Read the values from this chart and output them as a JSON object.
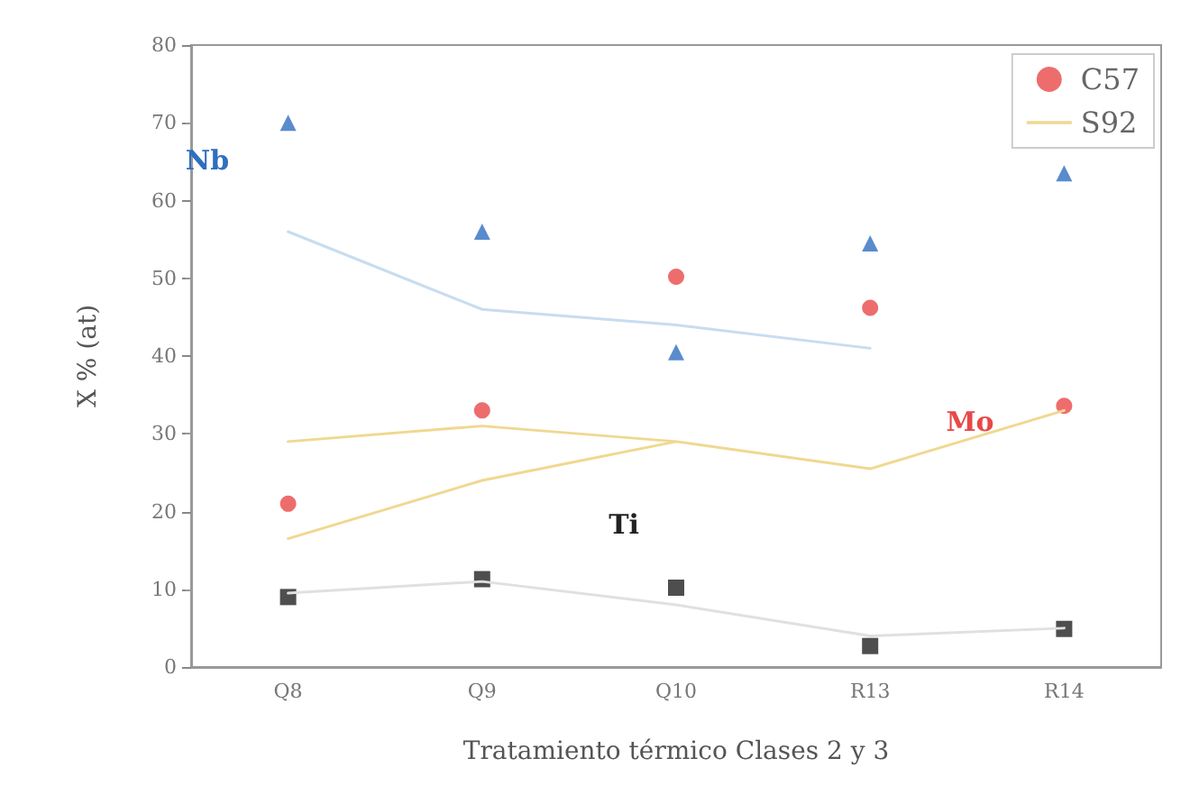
{
  "chart_data": {
    "type": "line",
    "xlabel": "Tratamiento térmico Clases 2 y 3",
    "ylabel": "X % (at)",
    "categories": [
      "Q8",
      "Q9",
      "Q10",
      "R13",
      "R14"
    ],
    "series": [
      {
        "type": "scatter",
        "color": "#2f6fc0",
        "marker": "triangle",
        "values": [
          70,
          56,
          40.5,
          54.5,
          63.5
        ]
      },
      {
        "type": "scatter",
        "name": "C57",
        "color": "#e84848",
        "marker": "circle",
        "values": [
          21,
          33,
          50.2,
          46.2,
          33.6
        ]
      },
      {
        "type": "scatter",
        "color": "#222222",
        "marker": "square",
        "values": [
          9,
          11.3,
          10.2,
          2.7,
          4.9
        ]
      },
      {
        "name": "S92",
        "color": "#f0d890",
        "marker": "none",
        "values": [
          16.5,
          24,
          29,
          25.5,
          33
        ]
      },
      {
        "color": "#f0d890",
        "marker": "none",
        "values": [
          29,
          31,
          29,
          null,
          null
        ]
      },
      {
        "color": "#c8dcf0",
        "marker": "none",
        "values": [
          56,
          46,
          44,
          41,
          null
        ]
      },
      {
        "color": "#e0e0e0",
        "marker": "none",
        "values": [
          9.5,
          11,
          8,
          4,
          5
        ]
      }
    ],
    "annotations": [
      "Nb",
      "Mo",
      "Ti"
    ],
    "ylim": [
      0,
      80
    ],
    "yticks": [
      0,
      10,
      20,
      30,
      40,
      50,
      60,
      70,
      80
    ],
    "grid": false,
    "legend": "top right"
  }
}
